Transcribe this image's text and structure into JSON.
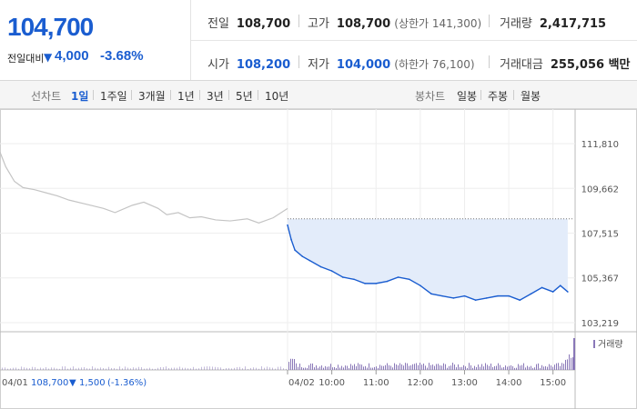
{
  "summary": {
    "price": "104,700",
    "change_label": "전일대비",
    "change_arrow": "▼",
    "change_value": "4,000",
    "change_pct": "-3.68%"
  },
  "stats": {
    "prev_close_label": "전일",
    "prev_close": "108,700",
    "high_label": "고가",
    "high": "108,700",
    "upper_limit": "(상한가 141,300)",
    "volume_label": "거래량",
    "volume": "2,417,715",
    "open_label": "시가",
    "open": "108,200",
    "low_label": "저가",
    "low": "104,000",
    "lower_limit": "(하한가 76,100)",
    "amount_label": "거래대금",
    "amount": "255,056 백만"
  },
  "tabs": {
    "line_label": "선차트",
    "line": [
      "1일",
      "1주일",
      "3개월",
      "1년",
      "3년",
      "5년",
      "10년"
    ],
    "candle_label": "봉차트",
    "candle": [
      "일봉",
      "주봉",
      "월봉"
    ]
  },
  "colors": {
    "accent": "#1a5dd0",
    "prev_line": "#c4c4c4",
    "fill": "#e3ecfa",
    "volume": "#8a78b8"
  },
  "chart_data": {
    "type": "line",
    "ylim": [
      103219,
      111810
    ],
    "y_ticks": [
      "111,810",
      "109,662",
      "107,515",
      "105,367",
      "103,219"
    ],
    "x_ticks": [
      "04/02",
      "10:00",
      "11:00",
      "12:00",
      "13:00",
      "14:00",
      "15:00"
    ],
    "prev_day": {
      "date": "04/01",
      "close": "108,700",
      "arrow": "▼",
      "change": "1,500",
      "change_pct": "(-1.36%)"
    },
    "reference_price": 108200,
    "series": [
      {
        "x": [
          0,
          0.02,
          0.05,
          0.08,
          0.12,
          0.16,
          0.2,
          0.24,
          0.3,
          0.36,
          0.4,
          0.46,
          0.5,
          0.55,
          0.58,
          0.62,
          0.66,
          0.7,
          0.75,
          0.8,
          0.86,
          0.9,
          0.95,
          1
        ],
        "values": [
          111400,
          110700,
          110000,
          109700,
          109600,
          109450,
          109300,
          109100,
          108900,
          108700,
          108500,
          108850,
          109000,
          108700,
          108400,
          108500,
          108250,
          108300,
          108150,
          108100,
          108200,
          108000,
          108250,
          108700
        ]
      },
      {
        "name": "price",
        "x": [
          "09:00",
          "09:05",
          "09:10",
          "09:20",
          "09:30",
          "09:45",
          "10:00",
          "10:15",
          "10:30",
          "10:45",
          "11:00",
          "11:15",
          "11:30",
          "11:45",
          "12:00",
          "12:15",
          "12:30",
          "12:45",
          "13:00",
          "13:15",
          "13:30",
          "13:45",
          "14:00",
          "14:15",
          "14:30",
          "14:45",
          "15:00",
          "15:10",
          "15:20"
        ],
        "values": [
          107900,
          107200,
          106700,
          106400,
          106200,
          105900,
          105700,
          105400,
          105300,
          105100,
          105100,
          105200,
          105400,
          105300,
          105000,
          104600,
          104500,
          104400,
          104500,
          104300,
          104400,
          104500,
          104500,
          104300,
          104600,
          104900,
          104700,
          105000,
          104700
        ]
      }
    ],
    "volume_label": "거래량"
  }
}
